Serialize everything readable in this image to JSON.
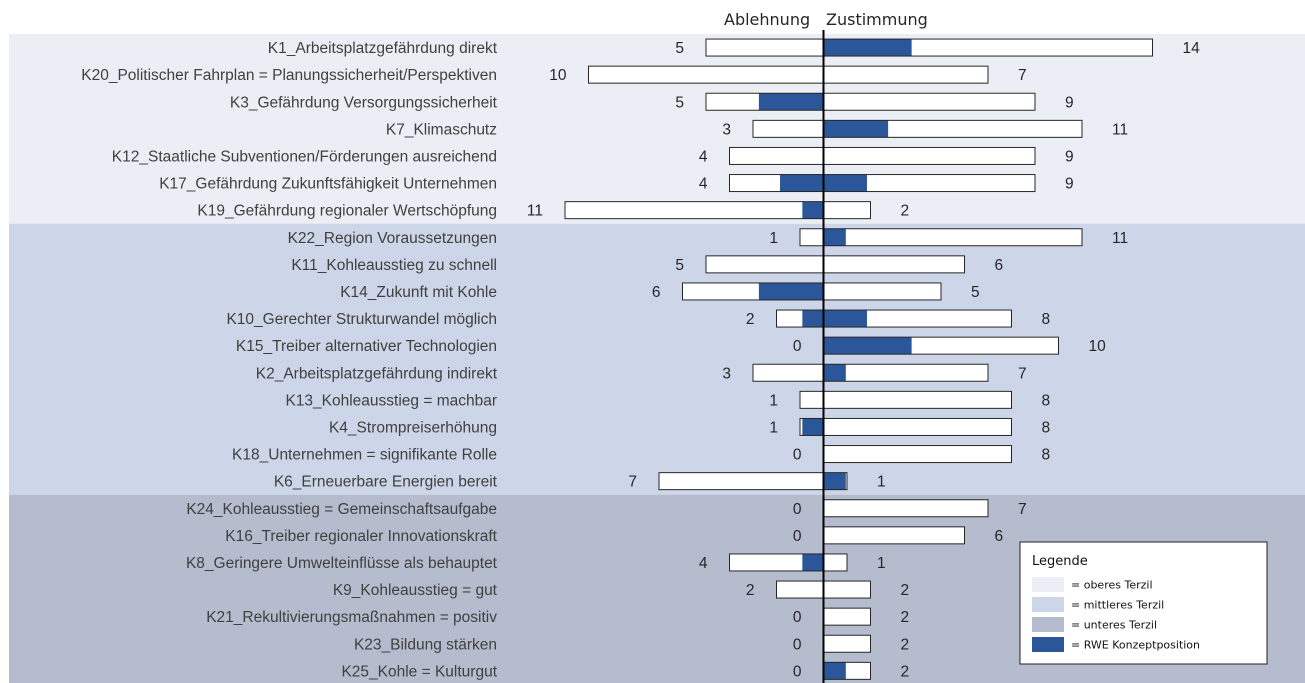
{
  "chart_data": {
    "type": "bar",
    "subtype": "diverging-horizontal",
    "headers": {
      "left": "Ablehnung",
      "right": "Zustimmung"
    },
    "colors": {
      "oberes": "#ebeff5",
      "mittleres": "#cdd6e8",
      "unteres": "#b4bccd",
      "rwe": "#2b579a",
      "bar_outline": "#262626"
    },
    "rows": [
      {
        "label": "K1_Arbeitsplatzgefährdung direkt",
        "neg": 5,
        "pos": 14,
        "rwe_neg": 0,
        "rwe_pos": 3.75,
        "group": "oberes"
      },
      {
        "label": "K20_Politischer Fahrplan = Planungssicherheit/Perspektiven",
        "neg": 10,
        "pos": 7,
        "rwe_neg": 0,
        "rwe_pos": 0,
        "group": "oberes"
      },
      {
        "label": "K3_Gefährdung Versorgungssicherheit",
        "neg": 5,
        "pos": 9,
        "rwe_neg": 2.75,
        "rwe_pos": 0,
        "group": "oberes"
      },
      {
        "label": "K7_Klimaschutz",
        "neg": 3,
        "pos": 11,
        "rwe_neg": 0,
        "rwe_pos": 2.75,
        "group": "oberes"
      },
      {
        "label": "K12_Staatliche Subventionen/Förderungen ausreichend",
        "neg": 4,
        "pos": 9,
        "rwe_neg": 0,
        "rwe_pos": 0,
        "group": "oberes"
      },
      {
        "label": "K17_Gefährdung Zukunftsfähigkeit Unternehmen",
        "neg": 4,
        "pos": 9,
        "rwe_neg": 1.85,
        "rwe_pos": 1.85,
        "group": "oberes"
      },
      {
        "label": "K19_Gefährdung regionaler Wertschöpfung",
        "neg": 11,
        "pos": 2,
        "rwe_neg": 0.9,
        "rwe_pos": 0,
        "group": "oberes"
      },
      {
        "label": "K22_Region Voraussetzungen",
        "neg": 1,
        "pos": 11,
        "rwe_neg": 0,
        "rwe_pos": 0.95,
        "group": "mittleres"
      },
      {
        "label": "K11_Kohleausstieg zu schnell",
        "neg": 5,
        "pos": 6,
        "rwe_neg": 0,
        "rwe_pos": 0,
        "group": "mittleres"
      },
      {
        "label": "K14_Zukunft mit Kohle",
        "neg": 6,
        "pos": 5,
        "rwe_neg": 2.75,
        "rwe_pos": 0,
        "group": "mittleres"
      },
      {
        "label": "K10_Gerechter Strukturwandel möglich",
        "neg": 2,
        "pos": 8,
        "rwe_neg": 0.9,
        "rwe_pos": 1.85,
        "group": "mittleres"
      },
      {
        "label": "K15_Treiber alternativer Technologien",
        "neg": 0,
        "pos": 10,
        "rwe_neg": 0,
        "rwe_pos": 3.75,
        "group": "mittleres"
      },
      {
        "label": "K2_Arbeitsplatzgefährdung indirekt",
        "neg": 3,
        "pos": 7,
        "rwe_neg": 0,
        "rwe_pos": 0.95,
        "group": "mittleres"
      },
      {
        "label": "K13_Kohleausstieg = machbar",
        "neg": 1,
        "pos": 8,
        "rwe_neg": 0,
        "rwe_pos": 0,
        "group": "mittleres"
      },
      {
        "label": "K4_Strompreiserhöhung",
        "neg": 1,
        "pos": 8,
        "rwe_neg": 0.9,
        "rwe_pos": 0,
        "group": "mittleres"
      },
      {
        "label": "K18_Unternehmen = signifikante Rolle",
        "neg": 0,
        "pos": 8,
        "rwe_neg": 0,
        "rwe_pos": 0,
        "group": "mittleres"
      },
      {
        "label": "K6_Erneuerbare Energien bereit",
        "neg": 7,
        "pos": 1,
        "rwe_neg": 0,
        "rwe_pos": 0.95,
        "group": "mittleres"
      },
      {
        "label": "K24_Kohleausstieg = Gemeinschaftsaufgabe",
        "neg": 0,
        "pos": 7,
        "rwe_neg": 0,
        "rwe_pos": 0,
        "group": "unteres"
      },
      {
        "label": "K16_Treiber regionaler Innovationskraft",
        "neg": 0,
        "pos": 6,
        "rwe_neg": 0,
        "rwe_pos": 0,
        "group": "unteres"
      },
      {
        "label": "K8_Geringere Umwelteinflüsse als behauptet",
        "neg": 4,
        "pos": 1,
        "rwe_neg": 0.9,
        "rwe_pos": 0,
        "group": "unteres"
      },
      {
        "label": "K9_Kohleausstieg = gut",
        "neg": 2,
        "pos": 2,
        "rwe_neg": 0,
        "rwe_pos": 0,
        "group": "unteres"
      },
      {
        "label": "K21_Rekultivierungsmaßnahmen =  positiv",
        "neg": 0,
        "pos": 2,
        "rwe_neg": 0,
        "rwe_pos": 0,
        "group": "unteres"
      },
      {
        "label": "K23_Bildung stärken",
        "neg": 0,
        "pos": 2,
        "rwe_neg": 0,
        "rwe_pos": 0,
        "group": "unteres"
      },
      {
        "label": "K25_Kohle = Kulturgut",
        "neg": 0,
        "pos": 2,
        "rwe_neg": 0,
        "rwe_pos": 0.95,
        "group": "unteres"
      }
    ],
    "legend": {
      "title": "Legende",
      "position": "bottom-right",
      "items": [
        {
          "key": "oberes",
          "label": "= oberes Terzil"
        },
        {
          "key": "mittleres",
          "label": "= mittleres Terzil"
        },
        {
          "key": "unteres",
          "label": "= unteres Terzil"
        },
        {
          "key": "rwe",
          "label": "= RWE Konzeptposition"
        }
      ]
    }
  }
}
